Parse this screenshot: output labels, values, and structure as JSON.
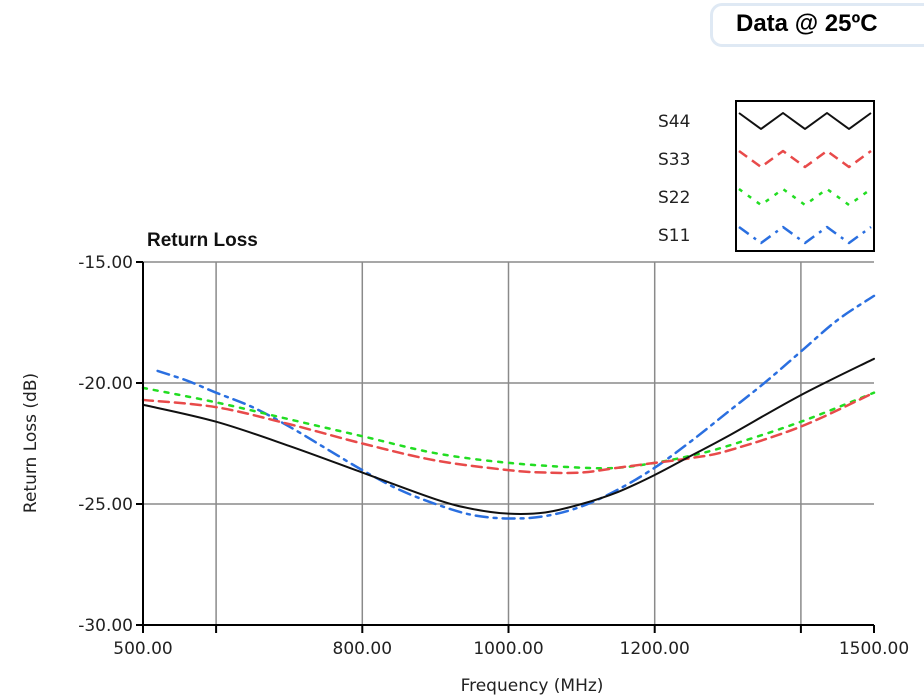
{
  "badge": {
    "text": "Data @ 25ºC"
  },
  "chart_data": {
    "type": "line",
    "title": "Return Loss",
    "xlabel": "Frequency (MHz)",
    "ylabel": "Return Loss (dB)",
    "xlim": [
      500,
      1500
    ],
    "ylim": [
      -30,
      -15
    ],
    "x_tick_labels": [
      {
        "value": 500,
        "label": "500.00"
      },
      {
        "value": 800,
        "label": "800.00"
      },
      {
        "value": 1000,
        "label": "1000.00"
      },
      {
        "value": 1200,
        "label": "1200.00"
      },
      {
        "value": 1500,
        "label": "1500.00"
      }
    ],
    "x_gridlines": [
      600,
      800,
      1000,
      1200,
      1400
    ],
    "x_minor_ticks": [
      600,
      1400
    ],
    "y_tick_labels": [
      {
        "value": -15,
        "label": "-15.00"
      },
      {
        "value": -20,
        "label": "-20.00"
      },
      {
        "value": -25,
        "label": "-25.00"
      },
      {
        "value": -30,
        "label": "-30.00"
      }
    ],
    "grid": true,
    "legend_position": "top-right",
    "series": [
      {
        "name": "S44",
        "color": "#111111",
        "style": "solid",
        "x": [
          500,
          600,
          700,
          800,
          900,
          950,
          1000,
          1050,
          1100,
          1150,
          1200,
          1250,
          1300,
          1400,
          1500
        ],
        "y": [
          -20.9,
          -21.6,
          -22.6,
          -23.7,
          -24.8,
          -25.2,
          -25.4,
          -25.35,
          -25.0,
          -24.5,
          -23.8,
          -23.0,
          -22.2,
          -20.5,
          -19.0
        ]
      },
      {
        "name": "S33",
        "color": "#e84a4a",
        "style": "dash",
        "x": [
          500,
          600,
          700,
          800,
          900,
          1000,
          1050,
          1100,
          1150,
          1200,
          1250,
          1300,
          1400,
          1500
        ],
        "y": [
          -20.7,
          -21.0,
          -21.7,
          -22.5,
          -23.2,
          -23.6,
          -23.7,
          -23.7,
          -23.5,
          -23.3,
          -23.1,
          -22.8,
          -21.8,
          -20.4
        ]
      },
      {
        "name": "S22",
        "color": "#22dd22",
        "style": "dot",
        "x": [
          500,
          600,
          700,
          800,
          900,
          1000,
          1100,
          1150,
          1200,
          1250,
          1300,
          1400,
          1500
        ],
        "y": [
          -20.2,
          -20.8,
          -21.5,
          -22.2,
          -22.9,
          -23.3,
          -23.5,
          -23.5,
          -23.3,
          -23.0,
          -22.6,
          -21.6,
          -20.4
        ]
      },
      {
        "name": "S11",
        "color": "#2a6fe0",
        "style": "dashdot",
        "x": [
          520,
          560,
          600,
          650,
          700,
          750,
          800,
          850,
          900,
          950,
          1000,
          1050,
          1100,
          1150,
          1200,
          1250,
          1300,
          1350,
          1400,
          1450,
          1500
        ],
        "y": [
          -19.5,
          -19.9,
          -20.4,
          -21.0,
          -21.8,
          -22.7,
          -23.6,
          -24.4,
          -25.0,
          -25.45,
          -25.6,
          -25.5,
          -25.1,
          -24.4,
          -23.5,
          -22.4,
          -21.2,
          -20.0,
          -18.7,
          -17.4,
          -16.4
        ]
      }
    ]
  }
}
